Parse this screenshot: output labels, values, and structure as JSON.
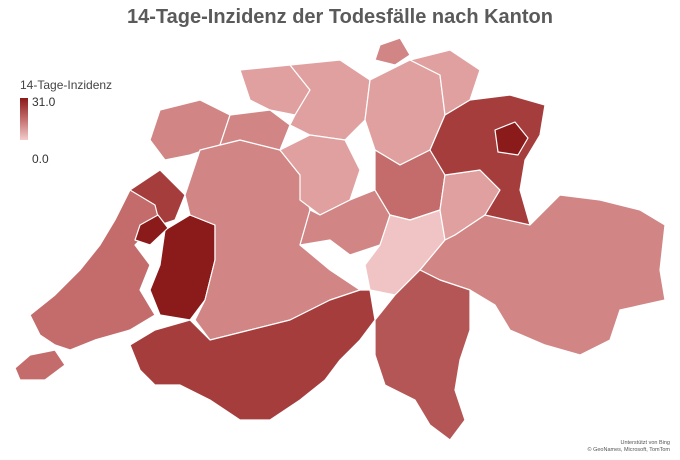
{
  "title": "14-Tage-Inzidenz der Todesfälle nach Kanton",
  "legend": {
    "title": "14-Tage-Inzidenz",
    "max": "31.0",
    "min": "0.0",
    "color_max": "#8b1a1a",
    "color_mid": "#c36c6c",
    "color_min": "#f3cccc"
  },
  "attribution": {
    "line1": "Unterstützt von Bing",
    "line2": "© GeoNames, Microsoft, TomTom"
  },
  "region_colors": {
    "lightest": "#f0c4c4",
    "light": "#e0a0a0",
    "medium_light": "#d18585",
    "medium": "#c46c6c",
    "medium_dark": "#b55656",
    "dark": "#a63d3d",
    "darkest": "#8b1a1a"
  }
}
